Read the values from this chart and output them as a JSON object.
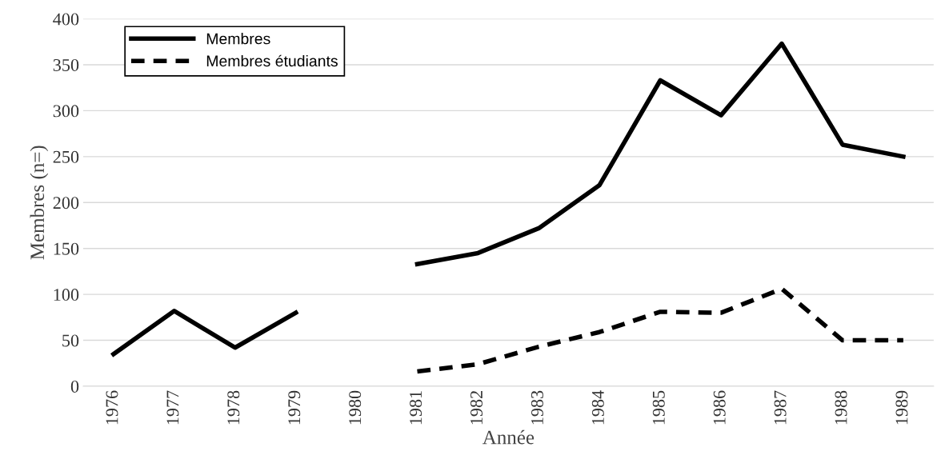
{
  "chart_data": {
    "type": "line",
    "xlabel": "Année",
    "ylabel": "Membres (n=)",
    "categories": [
      "1976",
      "1977",
      "1978",
      "1979",
      "1980",
      "1981",
      "1982",
      "1983",
      "1984",
      "1985",
      "1986",
      "1987",
      "1988",
      "1989"
    ],
    "series": [
      {
        "name": "Membres",
        "color": "#000000",
        "line_style": "solid",
        "values": [
          35,
          82,
          42,
          80,
          null,
          133,
          145,
          172,
          219,
          333,
          295,
          373,
          263,
          250
        ]
      },
      {
        "name": "Membres étudiants",
        "color": "#000000",
        "line_style": "dashed",
        "values": [
          null,
          null,
          null,
          null,
          null,
          16,
          24,
          43,
          59,
          81,
          80,
          106,
          50,
          50
        ]
      }
    ],
    "ylim": [
      0,
      400
    ],
    "yticks": [
      0,
      50,
      100,
      150,
      200,
      250,
      300,
      350,
      400
    ],
    "grid": "y",
    "legend": "top left",
    "marker": "none"
  }
}
